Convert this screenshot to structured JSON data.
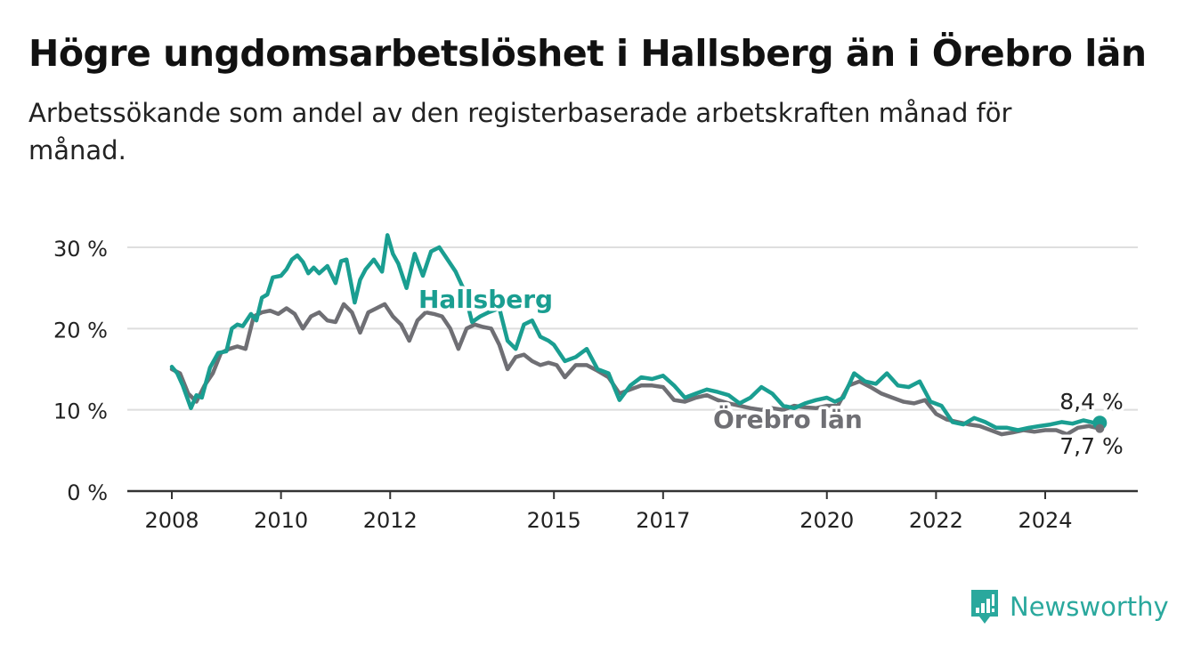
{
  "title": "Högre ungdomsarbetslöshet i Hallsberg än i Örebro län",
  "subtitle": "Arbetssökande som andel av den registerbaserade arbetskraften månad för månad.",
  "brand": {
    "name": "Newsworthy",
    "icon": "newsworthy-logo-icon",
    "color": "#2aa89d"
  },
  "chart_data": {
    "type": "line",
    "title": "Högre ungdomsarbetslöshet i Hallsberg än i Örebro län",
    "subtitle": "Arbetssökande som andel av den registerbaserade arbetskraften månad för månad.",
    "xlabel": "",
    "ylabel": "",
    "xlim": [
      2008,
      2025.9
    ],
    "ylim": [
      0,
      30
    ],
    "y_ticks": [
      0,
      10,
      20,
      30
    ],
    "y_tick_labels": [
      "0 %",
      "10 %",
      "20 %",
      "30 %"
    ],
    "x_ticks": [
      2008,
      2010,
      2012,
      2015,
      2017,
      2020,
      2022,
      2024
    ],
    "x_tick_labels": [
      "2008",
      "2010",
      "2012",
      "2015",
      "2017",
      "2020",
      "2022",
      "2024"
    ],
    "grid": true,
    "series": [
      {
        "name": "Hallsberg",
        "color": "#1a9e91",
        "end_label": "8,4 %",
        "x": [
          2008.0,
          2008.1,
          2008.2,
          2008.35,
          2008.45,
          2008.55,
          2008.7,
          2008.85,
          2009.0,
          2009.1,
          2009.2,
          2009.3,
          2009.45,
          2009.55,
          2009.65,
          2009.75,
          2009.85,
          2010.0,
          2010.1,
          2010.2,
          2010.3,
          2010.4,
          2010.5,
          2010.6,
          2010.7,
          2010.85,
          2011.0,
          2011.1,
          2011.2,
          2011.35,
          2011.45,
          2011.55,
          2011.7,
          2011.85,
          2011.95,
          2012.05,
          2012.15,
          2012.3,
          2012.45,
          2012.6,
          2012.75,
          2012.9,
          2013.0,
          2013.2,
          2013.35,
          2013.5,
          2013.65,
          2013.8,
          2014.0,
          2014.15,
          2014.3,
          2014.45,
          2014.6,
          2014.75,
          2014.9,
          2015.0,
          2015.2,
          2015.4,
          2015.6,
          2015.8,
          2016.0,
          2016.2,
          2016.4,
          2016.6,
          2016.8,
          2017.0,
          2017.2,
          2017.4,
          2017.6,
          2017.8,
          2018.0,
          2018.2,
          2018.4,
          2018.6,
          2018.8,
          2019.0,
          2019.2,
          2019.4,
          2019.6,
          2019.8,
          2020.0,
          2020.15,
          2020.3,
          2020.5,
          2020.7,
          2020.9,
          2021.1,
          2021.3,
          2021.5,
          2021.7,
          2021.9,
          2022.1,
          2022.3,
          2022.5,
          2022.7,
          2022.9,
          2023.1,
          2023.3,
          2023.5,
          2023.7,
          2023.9,
          2024.1,
          2024.3,
          2024.5,
          2024.7,
          2024.9,
          2025.0
        ],
        "values": [
          15.3,
          14.5,
          13.0,
          10.2,
          11.8,
          11.5,
          15.2,
          17.0,
          17.2,
          20.0,
          20.5,
          20.3,
          21.8,
          21.0,
          23.8,
          24.2,
          26.3,
          26.5,
          27.3,
          28.5,
          29.0,
          28.2,
          26.8,
          27.5,
          26.8,
          27.7,
          25.6,
          28.3,
          28.5,
          23.2,
          26.0,
          27.3,
          28.5,
          27.0,
          31.5,
          29.2,
          28.0,
          25.0,
          29.2,
          26.5,
          29.5,
          30.0,
          29.0,
          27.0,
          24.8,
          20.8,
          21.5,
          22.0,
          22.5,
          18.5,
          17.5,
          20.5,
          21.0,
          19.0,
          18.5,
          18.0,
          16.0,
          16.5,
          17.5,
          15.0,
          14.5,
          11.2,
          13.0,
          14.0,
          13.8,
          14.2,
          13.0,
          11.5,
          12.0,
          12.5,
          12.2,
          11.8,
          10.8,
          11.5,
          12.8,
          12.0,
          10.5,
          10.2,
          10.8,
          11.2,
          11.5,
          11.0,
          11.5,
          14.5,
          13.5,
          13.2,
          14.5,
          13.0,
          12.8,
          13.5,
          11.0,
          10.5,
          8.5,
          8.2,
          9.0,
          8.5,
          7.8,
          7.8,
          7.5,
          7.8,
          8.0,
          8.2,
          8.5,
          8.3,
          8.7,
          8.4,
          8.4
        ]
      },
      {
        "name": "Örebro län",
        "color": "#6f6f74",
        "end_label": "7,7 %",
        "x": [
          2008.0,
          2008.15,
          2008.3,
          2008.45,
          2008.6,
          2008.75,
          2008.9,
          2009.05,
          2009.2,
          2009.35,
          2009.5,
          2009.65,
          2009.8,
          2009.95,
          2010.1,
          2010.25,
          2010.4,
          2010.55,
          2010.7,
          2010.85,
          2011.0,
          2011.15,
          2011.3,
          2011.45,
          2011.6,
          2011.75,
          2011.9,
          2012.05,
          2012.2,
          2012.35,
          2012.5,
          2012.65,
          2012.8,
          2012.95,
          2013.1,
          2013.25,
          2013.4,
          2013.55,
          2013.7,
          2013.85,
          2014.0,
          2014.15,
          2014.3,
          2014.45,
          2014.6,
          2014.75,
          2014.9,
          2015.05,
          2015.2,
          2015.4,
          2015.6,
          2015.8,
          2016.0,
          2016.2,
          2016.4,
          2016.6,
          2016.8,
          2017.0,
          2017.2,
          2017.4,
          2017.6,
          2017.8,
          2018.0,
          2018.2,
          2018.4,
          2018.6,
          2018.8,
          2019.0,
          2019.2,
          2019.4,
          2019.6,
          2019.8,
          2020.0,
          2020.2,
          2020.4,
          2020.6,
          2020.8,
          2021.0,
          2021.2,
          2021.4,
          2021.6,
          2021.8,
          2022.0,
          2022.2,
          2022.4,
          2022.6,
          2022.8,
          2023.0,
          2023.2,
          2023.4,
          2023.6,
          2023.8,
          2024.0,
          2024.2,
          2024.4,
          2024.6,
          2024.8,
          2025.0
        ],
        "values": [
          15.0,
          14.5,
          12.0,
          11.0,
          13.0,
          14.5,
          17.0,
          17.5,
          17.8,
          17.5,
          21.5,
          22.0,
          22.2,
          21.8,
          22.5,
          21.8,
          20.0,
          21.5,
          22.0,
          21.0,
          20.8,
          23.0,
          22.0,
          19.5,
          22.0,
          22.5,
          23.0,
          21.5,
          20.5,
          18.5,
          21.0,
          22.0,
          21.8,
          21.5,
          20.0,
          17.5,
          20.0,
          20.5,
          20.2,
          20.0,
          18.0,
          15.0,
          16.5,
          16.8,
          16.0,
          15.5,
          15.8,
          15.5,
          14.0,
          15.5,
          15.5,
          14.8,
          14.0,
          12.0,
          12.5,
          13.0,
          13.0,
          12.8,
          11.2,
          11.0,
          11.5,
          11.8,
          11.2,
          10.8,
          10.5,
          10.2,
          10.0,
          10.2,
          10.0,
          10.5,
          10.3,
          10.2,
          10.5,
          10.5,
          13.0,
          13.5,
          12.8,
          12.0,
          11.5,
          11.0,
          10.8,
          11.2,
          9.5,
          8.8,
          8.5,
          8.2,
          8.0,
          7.5,
          7.0,
          7.2,
          7.5,
          7.3,
          7.5,
          7.5,
          7.0,
          7.8,
          8.0,
          7.7
        ]
      }
    ],
    "annotations": [
      {
        "text": "Hallsberg",
        "series": 0
      },
      {
        "text": "Örebro län",
        "series": 1
      }
    ]
  }
}
